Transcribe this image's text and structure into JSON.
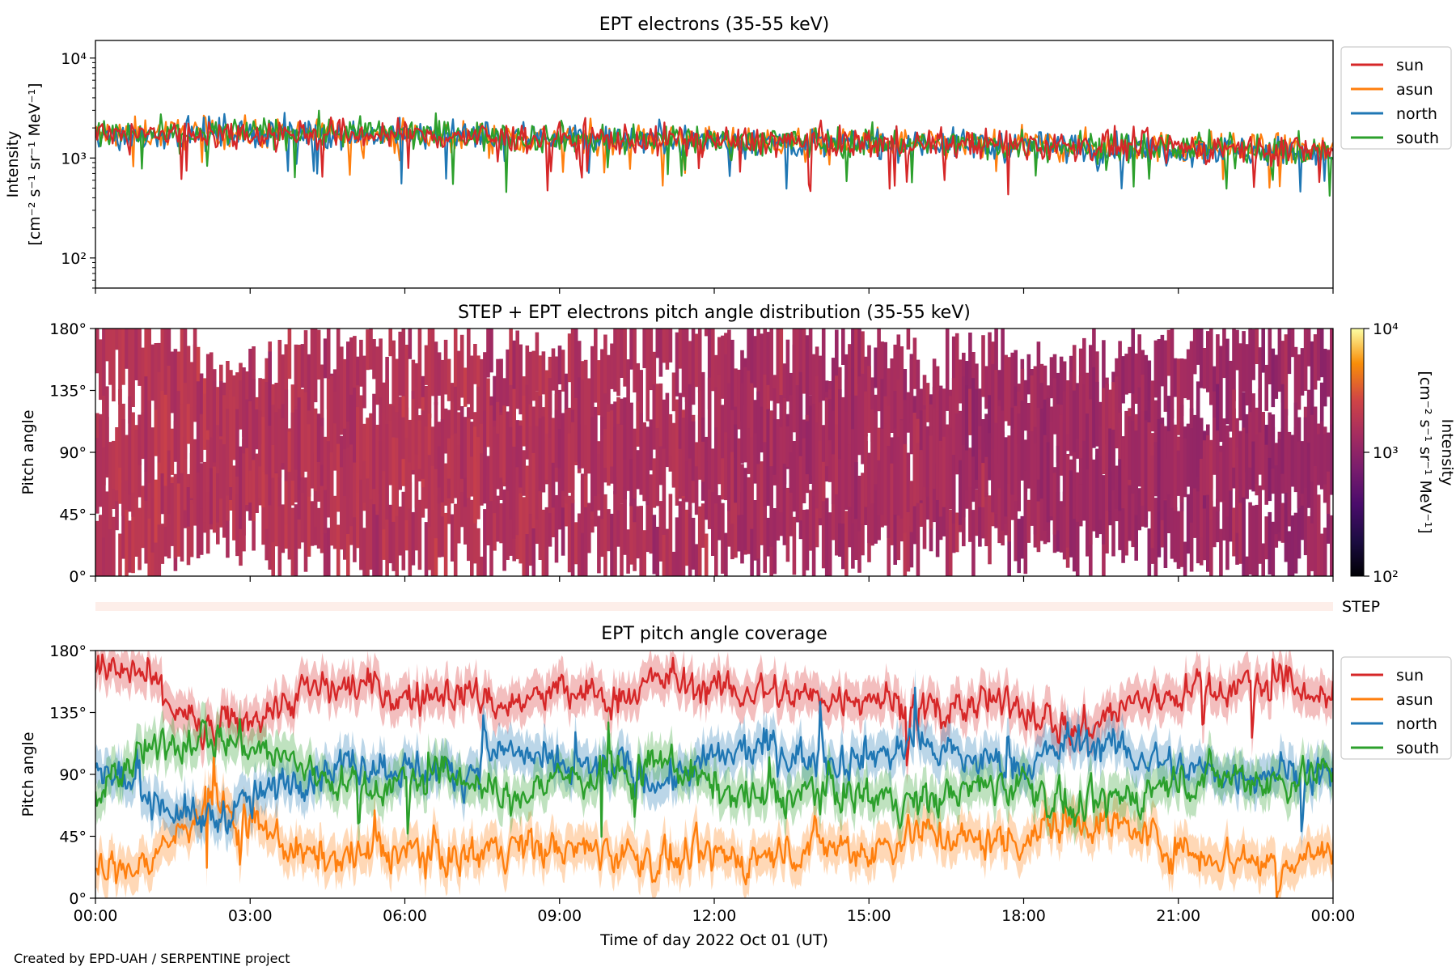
{
  "footer": {
    "credit": "Created by EPD-UAH / SERPENTINE project"
  },
  "chart_data": [
    {
      "type": "line",
      "title": "EPT electrons (35-55 keV)",
      "ylabel": "Intensity",
      "yunit_label": "[cm⁻² s⁻¹ sr⁻¹ MeV⁻¹]",
      "yscale": "log",
      "ylim": [
        50,
        15000
      ],
      "ytick_values": [
        100,
        1000,
        10000
      ],
      "ytick_labels": [
        "10²",
        "10³",
        "10⁴"
      ],
      "xlim_hours": [
        0,
        24
      ],
      "x_hours": [
        0,
        2,
        4,
        6,
        8,
        10,
        12,
        14,
        16,
        18,
        20,
        22,
        24
      ],
      "legend": "upper right outside",
      "series": [
        {
          "name": "sun",
          "color": "#d62728",
          "values": [
            1700,
            1750,
            1750,
            1700,
            1600,
            1550,
            1500,
            1450,
            1400,
            1350,
            1300,
            1250,
            1200
          ]
        },
        {
          "name": "asun",
          "color": "#ff7f0e",
          "values": [
            1750,
            1780,
            1750,
            1700,
            1650,
            1550,
            1500,
            1450,
            1400,
            1350,
            1300,
            1250,
            1150
          ]
        },
        {
          "name": "north",
          "color": "#1f77b4",
          "values": [
            1650,
            1800,
            1800,
            1700,
            1650,
            1600,
            1500,
            1400,
            1400,
            1300,
            1250,
            1200,
            1150
          ]
        },
        {
          "name": "south",
          "color": "#2ca02c",
          "values": [
            1650,
            1750,
            1850,
            1750,
            1650,
            1550,
            1500,
            1450,
            1400,
            1350,
            1300,
            1250,
            1150
          ]
        }
      ]
    },
    {
      "type": "heatmap",
      "title": "STEP + EPT electrons pitch angle distribution (35-55 keV)",
      "ylabel": "Pitch angle",
      "ylim": [
        0,
        180
      ],
      "ytick_values": [
        0,
        45,
        90,
        135,
        180
      ],
      "ytick_labels": [
        "0°",
        "45°",
        "90°",
        "135°",
        "180°"
      ],
      "xlim_hours": [
        0,
        24
      ],
      "colormap": "inferno",
      "colorbar_label": "Intensity",
      "colorbar_unit_label": "[cm⁻² s⁻¹ sr⁻¹ MeV⁻¹]",
      "colorbar_scale": "log",
      "colorbar_lim": [
        100,
        10000
      ],
      "colorbar_tick_values": [
        100,
        1000,
        10000
      ],
      "colorbar_tick_labels": [
        "10²",
        "10³",
        "10⁴"
      ],
      "typical_intensity_hours": [
        0,
        6,
        12,
        18,
        24
      ],
      "typical_intensity": [
        1800,
        1700,
        1500,
        1300,
        1200
      ]
    },
    {
      "type": "strip",
      "label": "STEP",
      "color": "#fdeee9"
    },
    {
      "type": "line",
      "title": "EPT pitch angle coverage",
      "xlabel": "Time of day 2022 Oct 01 (UT)",
      "ylabel": "Pitch angle",
      "ylim": [
        0,
        180
      ],
      "ytick_values": [
        0,
        45,
        90,
        135,
        180
      ],
      "ytick_labels": [
        "0°",
        "45°",
        "90°",
        "135°",
        "180°"
      ],
      "xlim_hours": [
        0,
        24
      ],
      "xtick_values": [
        0,
        3,
        6,
        9,
        12,
        15,
        18,
        21,
        24
      ],
      "xtick_labels": [
        "00:00",
        "03:00",
        "06:00",
        "09:00",
        "12:00",
        "15:00",
        "18:00",
        "21:00",
        "00:00"
      ],
      "legend": "upper right outside",
      "band_halfwidth_deg": 14,
      "x_hours": [
        0,
        1,
        2,
        3,
        4,
        5,
        6,
        7,
        8,
        9,
        10,
        11,
        12,
        13,
        14,
        15,
        16,
        17,
        18,
        19,
        20,
        21,
        22,
        23,
        24
      ],
      "series": [
        {
          "name": "sun",
          "color": "#d62728",
          "values": [
            165,
            160,
            120,
            130,
            150,
            155,
            145,
            150,
            140,
            150,
            145,
            160,
            150,
            150,
            145,
            150,
            135,
            140,
            140,
            120,
            140,
            150,
            155,
            155,
            145
          ]
        },
        {
          "name": "asun",
          "color": "#ff7f0e",
          "values": [
            20,
            25,
            65,
            55,
            30,
            30,
            35,
            30,
            40,
            35,
            35,
            25,
            30,
            30,
            40,
            35,
            50,
            40,
            45,
            60,
            50,
            35,
            30,
            25,
            35
          ]
        },
        {
          "name": "north",
          "color": "#1f77b4",
          "values": [
            95,
            75,
            55,
            70,
            90,
            100,
            95,
            90,
            110,
            90,
            95,
            85,
            100,
            110,
            100,
            105,
            110,
            100,
            95,
            115,
            105,
            95,
            90,
            95,
            85
          ]
        },
        {
          "name": "south",
          "color": "#2ca02c",
          "values": [
            80,
            105,
            120,
            110,
            95,
            80,
            85,
            90,
            70,
            90,
            85,
            100,
            80,
            70,
            80,
            75,
            70,
            80,
            85,
            60,
            75,
            85,
            90,
            85,
            95
          ]
        }
      ]
    }
  ]
}
